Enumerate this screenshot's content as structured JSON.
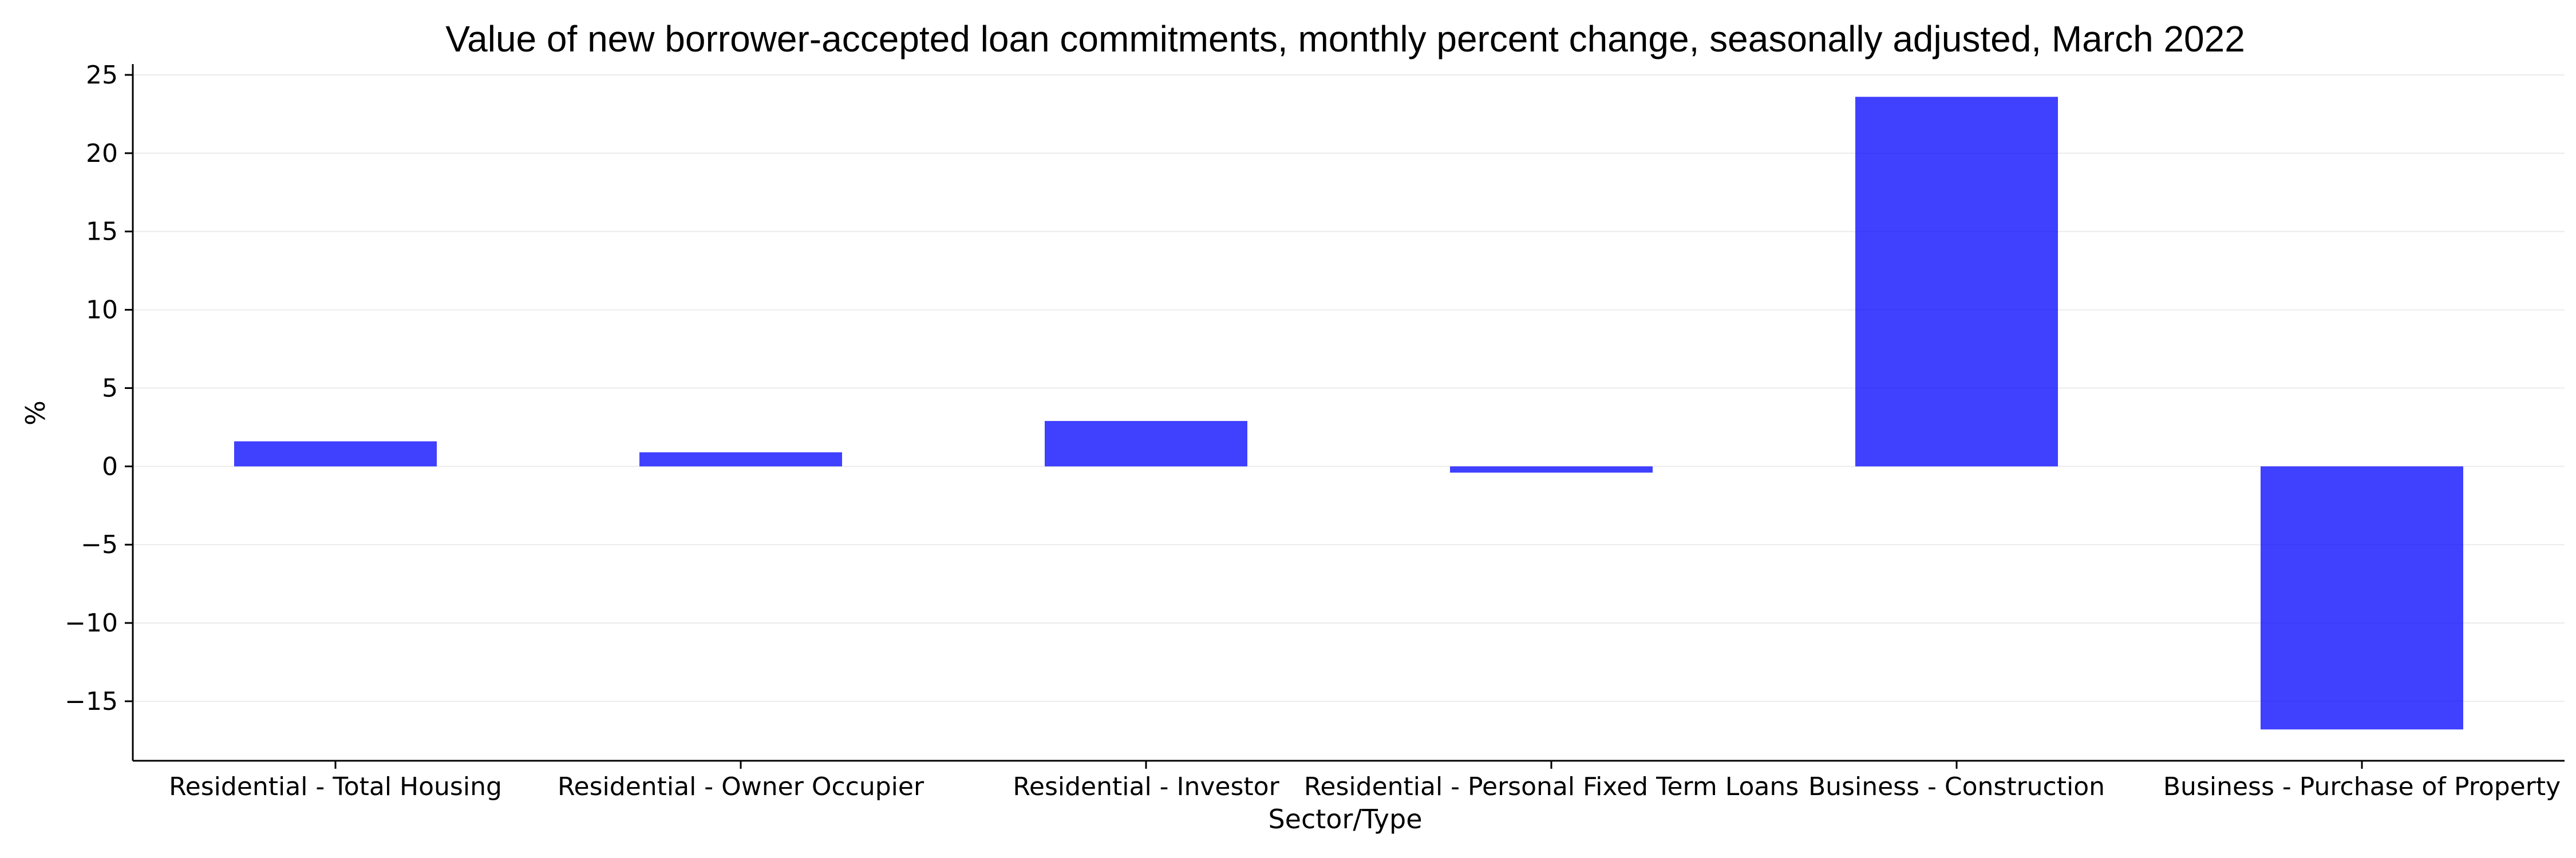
{
  "chart_data": {
    "type": "bar",
    "title": "Value of new borrower-accepted loan commitments, monthly percent change, seasonally adjusted, March 2022",
    "xlabel": "Sector/Type",
    "ylabel": "%",
    "categories": [
      "Residential - Total Housing",
      "Residential - Owner Occupier",
      "Residential - Investor",
      "Residential - Personal Fixed Term Loans",
      "Business - Construction",
      "Business - Purchase of Property"
    ],
    "values": [
      1.6,
      0.9,
      2.9,
      -0.4,
      23.6,
      -16.8
    ],
    "ylim": [
      -18.8,
      25.4
    ],
    "yticks": [
      25,
      20,
      15,
      10,
      5,
      0,
      -5,
      -10,
      -15
    ],
    "ytick_labels": [
      "25",
      "20",
      "15",
      "10",
      "5",
      "0",
      "−5",
      "−10",
      "−15"
    ],
    "grid": true,
    "bar_color": "#0000ff",
    "bar_opacity": 0.75
  }
}
